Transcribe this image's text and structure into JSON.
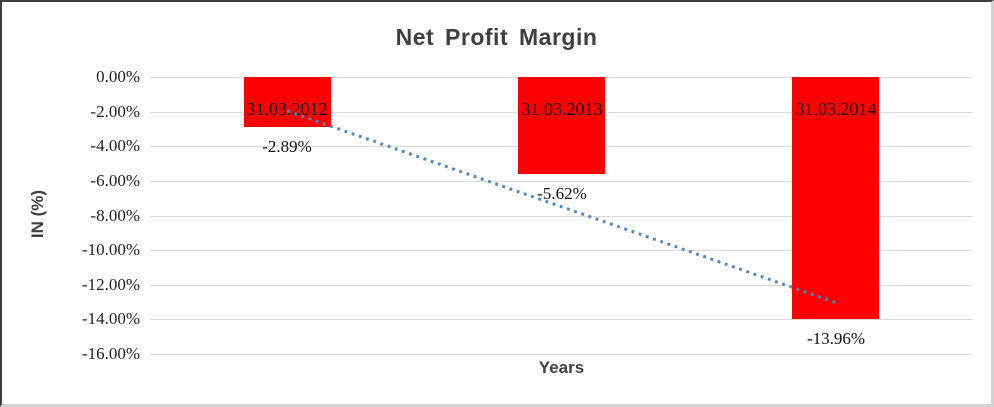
{
  "chart_data": {
    "type": "bar",
    "title": "Net Profit Margin",
    "xlabel": "Years",
    "ylabel": "IN (%)",
    "categories": [
      "31.03.2012",
      "31.03.2013",
      "31.03.2014"
    ],
    "series": [
      {
        "name": "Net Profit Margin",
        "values": [
          -2.89,
          -5.62,
          -13.96
        ]
      }
    ],
    "data_labels": [
      "-2.89%",
      "-5.62%",
      "-13.96%"
    ],
    "ylim": [
      -16,
      0
    ],
    "ytick_step": 2,
    "yticks": [
      "0.00%",
      "-2.00%",
      "-4.00%",
      "-6.00%",
      "-8.00%",
      "-10.00%",
      "-12.00%",
      "-14.00%",
      "-16.00%"
    ],
    "grid": true,
    "legend": "none",
    "colors": {
      "bar": "#ff0000",
      "gridline": "#d9d9d9",
      "trendline": "#4a86c5",
      "title_text": "#3f3f3f",
      "label_text": "#111111"
    },
    "trendline": {
      "type": "linear",
      "style": "dotted",
      "endpoints": [
        -1.96,
        -13.03
      ]
    }
  }
}
